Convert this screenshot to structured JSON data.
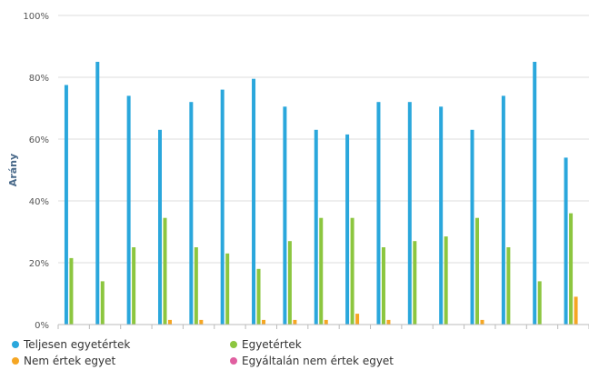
{
  "chart_data": {
    "type": "bar",
    "ylabel": "Arány",
    "xlabel": "",
    "ylim": [
      0,
      100
    ],
    "yticks": [
      "0%",
      "20%",
      "40%",
      "60%",
      "80%",
      "100%"
    ],
    "grid": true,
    "legend_position": "bottom",
    "category_count": 17,
    "series": [
      {
        "name": "Teljesen egyetértek",
        "color": "#2aa7dc",
        "values": [
          77.5,
          85,
          74,
          63,
          72,
          76,
          79.5,
          70.5,
          63,
          61.5,
          72,
          72,
          70.5,
          63,
          74,
          85,
          54
        ]
      },
      {
        "name": "Egyetértek",
        "color": "#8cc63f",
        "values": [
          21.5,
          14,
          25,
          34.5,
          25,
          23,
          18,
          27,
          34.5,
          34.5,
          25,
          27,
          28.5,
          34.5,
          25,
          14,
          36
        ]
      },
      {
        "name": "Nem értek egyet",
        "color": "#f5a623",
        "values": [
          0,
          0,
          0,
          1.5,
          1.5,
          0,
          1.5,
          1.5,
          1.5,
          3.5,
          1.5,
          0,
          0,
          1.5,
          0,
          0,
          9
        ]
      },
      {
        "name": "Egyáltalán nem értek egyet",
        "color": "#e05fa0",
        "values": [
          0,
          0,
          0,
          0,
          0,
          0,
          0,
          0,
          0,
          0,
          0,
          0,
          0,
          0,
          0,
          0,
          0
        ]
      }
    ]
  }
}
